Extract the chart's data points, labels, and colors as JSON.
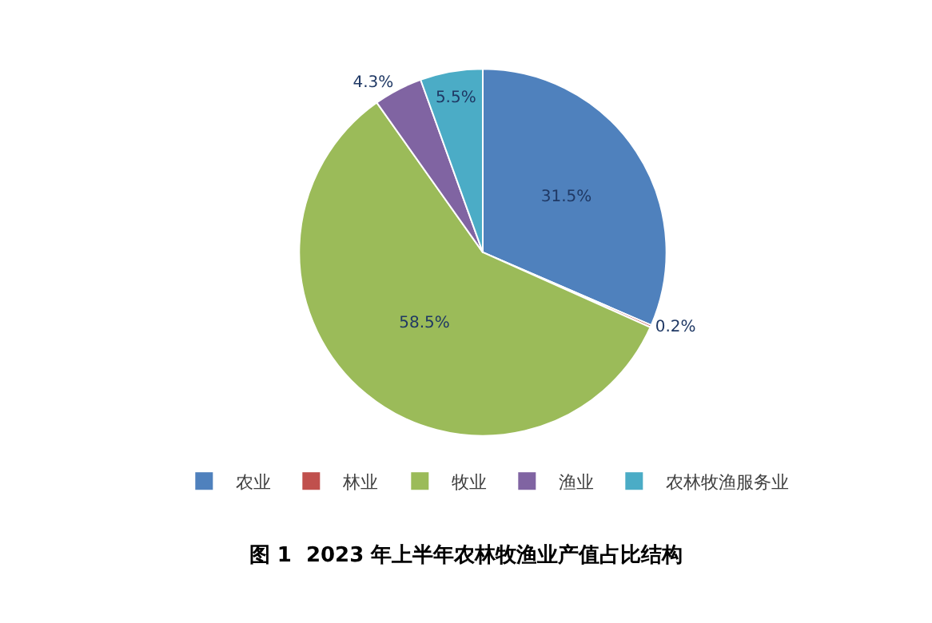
{
  "chart_data": {
    "type": "pie",
    "title": "图 1  2023 年上半年农林牧渔业产值占比结构",
    "categories": [
      "农业",
      "林业",
      "牧业",
      "渔业",
      "农林牧渔服务业"
    ],
    "values": [
      31.5,
      0.2,
      58.5,
      4.3,
      5.5
    ],
    "colors": [
      "#4f81bd",
      "#c0504d",
      "#9bbb59",
      "#8064a2",
      "#4bacc6"
    ],
    "value_labels": [
      "31.5%",
      "0.2%",
      "58.5%",
      "4.3%",
      "5.5%"
    ],
    "legend": "bottom"
  }
}
